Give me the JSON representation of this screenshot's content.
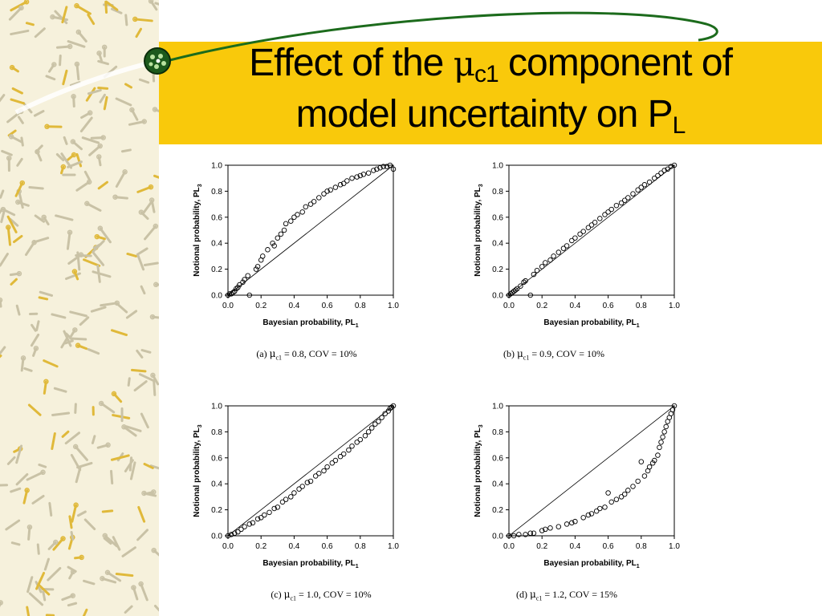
{
  "title": {
    "line1_prefix": "Effect of the ",
    "mu": "μ",
    "sub": "c1",
    "line1_suffix": " component of",
    "line2": "model uncertainty on P",
    "line2_sub": "L"
  },
  "colors": {
    "band": "#f9c90b",
    "pattern_bg": "#f6f1dc",
    "pattern_mark": "#c9c2a6",
    "deco_green": "#1c6b1c"
  },
  "chart_data": [
    {
      "type": "scatter",
      "panel": "a",
      "caption": {
        "prefix": "(a) ",
        "mu": "μ",
        "sub": "c1",
        "rest": " = 0.8, COV = 10%"
      },
      "xlabel": "Bayesian probability, PL",
      "xlabel_sub": "1",
      "ylabel": "Notional probability, PL",
      "ylabel_sub": "3",
      "xlim": [
        0,
        1
      ],
      "ylim": [
        0,
        1
      ],
      "xticks": [
        "0.0",
        "0.2",
        "0.4",
        "0.6",
        "0.8",
        "1.0"
      ],
      "yticks": [
        "0.0",
        "0.2",
        "0.4",
        "0.6",
        "0.8",
        "1.0"
      ],
      "reference_line": true,
      "x": [
        0.0,
        0.01,
        0.02,
        0.03,
        0.04,
        0.05,
        0.06,
        0.07,
        0.09,
        0.1,
        0.12,
        0.13,
        0.17,
        0.18,
        0.2,
        0.21,
        0.24,
        0.27,
        0.28,
        0.3,
        0.32,
        0.34,
        0.35,
        0.38,
        0.4,
        0.42,
        0.45,
        0.47,
        0.5,
        0.52,
        0.55,
        0.58,
        0.6,
        0.62,
        0.65,
        0.68,
        0.7,
        0.72,
        0.75,
        0.78,
        0.8,
        0.82,
        0.85,
        0.88,
        0.9,
        0.92,
        0.94,
        0.96,
        0.98,
        1.0
      ],
      "y": [
        0.0,
        0.01,
        0.01,
        0.02,
        0.03,
        0.05,
        0.06,
        0.08,
        0.1,
        0.12,
        0.15,
        0.0,
        0.2,
        0.22,
        0.27,
        0.3,
        0.35,
        0.4,
        0.38,
        0.44,
        0.47,
        0.5,
        0.55,
        0.57,
        0.6,
        0.62,
        0.64,
        0.68,
        0.7,
        0.72,
        0.75,
        0.78,
        0.8,
        0.81,
        0.83,
        0.85,
        0.86,
        0.88,
        0.9,
        0.91,
        0.92,
        0.93,
        0.94,
        0.96,
        0.97,
        0.98,
        0.99,
        0.99,
        1.0,
        0.97
      ]
    },
    {
      "type": "scatter",
      "panel": "b",
      "caption": {
        "prefix": "(b) ",
        "mu": "μ",
        "sub": "c1",
        "rest": " = 0.9, COV = 10%"
      },
      "xlabel": "Bayesian probability, PL",
      "xlabel_sub": "1",
      "ylabel": "Notional probability, PL",
      "ylabel_sub": "3",
      "xlim": [
        0,
        1
      ],
      "ylim": [
        0,
        1
      ],
      "xticks": [
        "0.0",
        "0.2",
        "0.4",
        "0.6",
        "0.8",
        "1.0"
      ],
      "yticks": [
        "0.0",
        "0.2",
        "0.4",
        "0.6",
        "0.8",
        "1.0"
      ],
      "reference_line": true,
      "x": [
        0.0,
        0.01,
        0.02,
        0.03,
        0.04,
        0.05,
        0.07,
        0.09,
        0.1,
        0.13,
        0.15,
        0.17,
        0.2,
        0.22,
        0.25,
        0.27,
        0.3,
        0.33,
        0.35,
        0.38,
        0.4,
        0.43,
        0.45,
        0.48,
        0.5,
        0.52,
        0.55,
        0.58,
        0.6,
        0.62,
        0.65,
        0.68,
        0.7,
        0.72,
        0.75,
        0.78,
        0.8,
        0.82,
        0.85,
        0.88,
        0.9,
        0.92,
        0.94,
        0.96,
        0.98,
        1.0
      ],
      "y": [
        0.0,
        0.01,
        0.02,
        0.03,
        0.04,
        0.05,
        0.07,
        0.1,
        0.11,
        0.0,
        0.16,
        0.19,
        0.22,
        0.25,
        0.27,
        0.3,
        0.33,
        0.36,
        0.38,
        0.42,
        0.44,
        0.47,
        0.49,
        0.52,
        0.54,
        0.56,
        0.59,
        0.62,
        0.64,
        0.66,
        0.69,
        0.71,
        0.73,
        0.75,
        0.78,
        0.81,
        0.83,
        0.85,
        0.87,
        0.9,
        0.92,
        0.94,
        0.96,
        0.97,
        0.99,
        1.0
      ]
    },
    {
      "type": "scatter",
      "panel": "c",
      "caption": {
        "prefix": "(c) ",
        "mu": "μ",
        "sub": "c1",
        "rest": " = 1.0, COV = 10%"
      },
      "xlabel": "Bayesian probability, PL",
      "xlabel_sub": "1",
      "ylabel": "Notional probability, PL",
      "ylabel_sub": "3",
      "xlim": [
        0,
        1
      ],
      "ylim": [
        0,
        1
      ],
      "xticks": [
        "0.0",
        "0.2",
        "0.4",
        "0.6",
        "0.8",
        "1.0"
      ],
      "yticks": [
        "0.0",
        "0.2",
        "0.4",
        "0.6",
        "0.8",
        "1.0"
      ],
      "reference_line": true,
      "x": [
        0.0,
        0.02,
        0.04,
        0.06,
        0.08,
        0.1,
        0.13,
        0.15,
        0.18,
        0.2,
        0.22,
        0.25,
        0.28,
        0.3,
        0.33,
        0.35,
        0.38,
        0.4,
        0.43,
        0.45,
        0.48,
        0.5,
        0.53,
        0.55,
        0.58,
        0.6,
        0.63,
        0.65,
        0.68,
        0.7,
        0.73,
        0.75,
        0.78,
        0.8,
        0.83,
        0.85,
        0.87,
        0.89,
        0.91,
        0.93,
        0.95,
        0.97,
        0.98,
        0.99,
        1.0
      ],
      "y": [
        0.0,
        0.01,
        0.02,
        0.03,
        0.05,
        0.07,
        0.09,
        0.1,
        0.13,
        0.14,
        0.16,
        0.18,
        0.21,
        0.22,
        0.26,
        0.28,
        0.3,
        0.33,
        0.36,
        0.38,
        0.41,
        0.42,
        0.46,
        0.48,
        0.5,
        0.53,
        0.56,
        0.58,
        0.61,
        0.63,
        0.66,
        0.69,
        0.72,
        0.74,
        0.77,
        0.8,
        0.83,
        0.86,
        0.88,
        0.91,
        0.94,
        0.96,
        0.98,
        0.99,
        1.0
      ]
    },
    {
      "type": "scatter",
      "panel": "d",
      "caption": {
        "prefix": "(d) ",
        "mu": "μ",
        "sub": "c1",
        "rest": " = 1.2, COV = 15%"
      },
      "xlabel": "Bayesian probability, PL",
      "xlabel_sub": "1",
      "ylabel": "Notional probability, PL",
      "ylabel_sub": "3",
      "xlim": [
        0,
        1
      ],
      "ylim": [
        0,
        1
      ],
      "xticks": [
        "0.0",
        "0.2",
        "0.4",
        "0.6",
        "0.8",
        "1.0"
      ],
      "yticks": [
        "0.0",
        "0.2",
        "0.4",
        "0.6",
        "0.8",
        "1.0"
      ],
      "reference_line": true,
      "x": [
        0.0,
        0.03,
        0.06,
        0.1,
        0.13,
        0.15,
        0.2,
        0.22,
        0.25,
        0.3,
        0.35,
        0.38,
        0.4,
        0.45,
        0.48,
        0.5,
        0.53,
        0.55,
        0.58,
        0.6,
        0.62,
        0.65,
        0.68,
        0.7,
        0.72,
        0.75,
        0.78,
        0.8,
        0.82,
        0.84,
        0.85,
        0.87,
        0.88,
        0.9,
        0.91,
        0.92,
        0.93,
        0.94,
        0.95,
        0.96,
        0.97,
        0.98,
        0.99,
        1.0
      ],
      "y": [
        0.0,
        0.0,
        0.01,
        0.01,
        0.02,
        0.02,
        0.04,
        0.05,
        0.06,
        0.07,
        0.09,
        0.1,
        0.11,
        0.14,
        0.16,
        0.17,
        0.19,
        0.21,
        0.22,
        0.33,
        0.26,
        0.28,
        0.3,
        0.32,
        0.35,
        0.38,
        0.42,
        0.57,
        0.46,
        0.5,
        0.53,
        0.56,
        0.58,
        0.62,
        0.68,
        0.72,
        0.76,
        0.8,
        0.84,
        0.88,
        0.91,
        0.94,
        0.97,
        1.0
      ]
    }
  ]
}
